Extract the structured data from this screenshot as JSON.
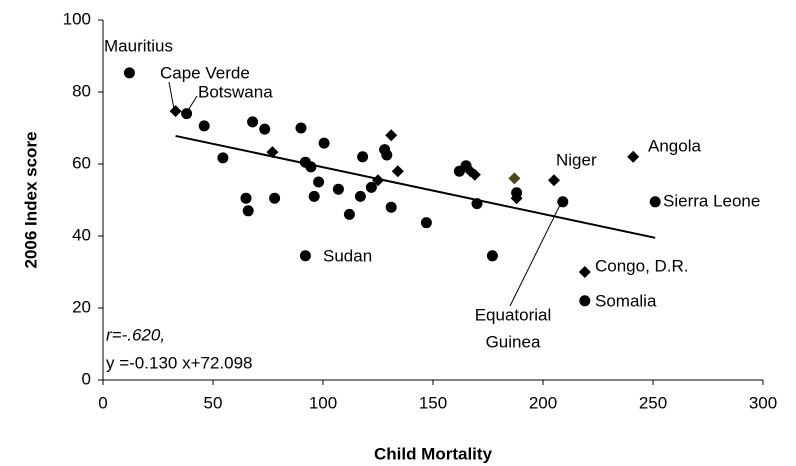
{
  "chart_data": {
    "type": "scatter",
    "x_label": "Child Mortality",
    "y_label": "2006 Index score",
    "xlim": [
      0,
      300
    ],
    "xticks": [
      0,
      50,
      100,
      150,
      200,
      250,
      300
    ],
    "ylim": [
      0,
      100
    ],
    "yticks": [
      0,
      20,
      40,
      60,
      80,
      100
    ],
    "grid": false,
    "series": [
      {
        "marker": "circle",
        "color": "#000000",
        "x": [
          12,
          38,
          46,
          54.5,
          68,
          73.5,
          90,
          92,
          94.5,
          100.5,
          65,
          66,
          78,
          96,
          98,
          107,
          112,
          117,
          118,
          122,
          128,
          129,
          131,
          147,
          162,
          165,
          170,
          177,
          188,
          209,
          251,
          219,
          92
        ],
        "values": [
          85.3,
          74,
          70.6,
          61.7,
          71.7,
          69.7,
          70,
          60.5,
          59.2,
          65.8,
          50.5,
          47,
          50.5,
          51,
          55,
          53,
          46,
          51,
          62,
          53.5,
          64,
          62.5,
          48,
          43.7,
          58,
          59.5,
          49,
          34.5,
          52,
          49.5,
          49.5,
          22,
          34.5
        ]
      },
      {
        "marker": "diamond",
        "color": "#000000",
        "x": [
          33,
          77,
          125,
          131,
          134,
          167,
          169,
          188,
          205,
          241,
          219
        ],
        "values": [
          74.7,
          63.3,
          55.5,
          68,
          58,
          58,
          57,
          50.5,
          55.5,
          62,
          30
        ]
      },
      {
        "marker": "diamond",
        "color": "#4a4a1e",
        "x": [
          187
        ],
        "values": [
          56
        ]
      }
    ],
    "trendline": {
      "x": [
        33,
        251
      ],
      "values": [
        67.8,
        39.5
      ]
    },
    "annotations": [
      "r=-.620,",
      "y =-0.130 x+72.098"
    ],
    "labels": [
      "Mauritius",
      "Cape Verde",
      "Botswana",
      "Sudan",
      "Niger",
      "Angola",
      "Sierra Leone",
      "Congo, D.R.",
      "Somalia",
      "Equatorial",
      "Guinea"
    ]
  }
}
